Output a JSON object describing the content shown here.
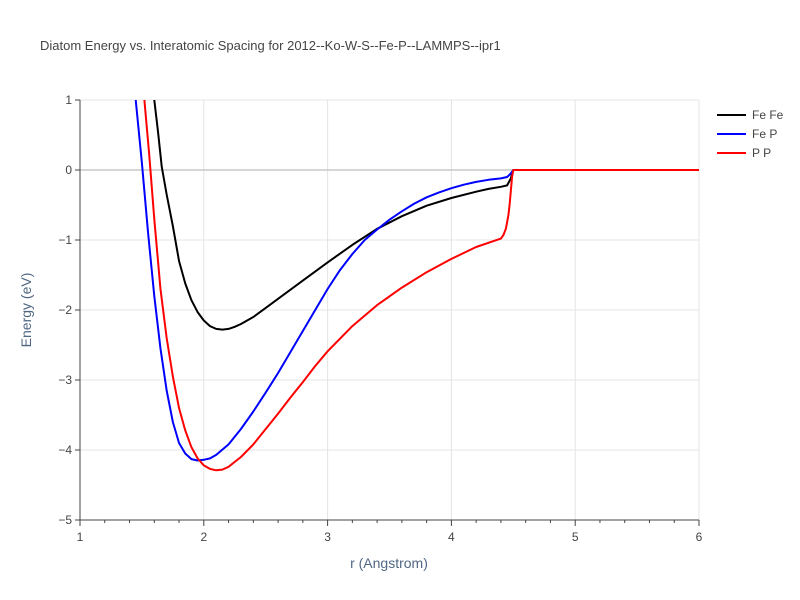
{
  "chart_data": {
    "type": "line",
    "title": "Diatom Energy vs. Interatomic Spacing for 2012--Ko-W-S--Fe-P--LAMMPS--ipr1",
    "xlabel": "r (Angstrom)",
    "ylabel": "Energy (eV)",
    "xlim": [
      1,
      6
    ],
    "ylim": [
      -5,
      1
    ],
    "xticks": [
      1,
      2,
      3,
      4,
      5,
      6
    ],
    "yticks": [
      -5,
      -4,
      -3,
      -2,
      -1,
      0,
      1
    ],
    "xtick_labels": [
      "1",
      "2",
      "3",
      "4",
      "5",
      "6"
    ],
    "ytick_labels": [
      "−5",
      "−4",
      "−3",
      "−2",
      "−1",
      "0",
      "1"
    ],
    "grid": true,
    "legend_position": "top-right",
    "series": [
      {
        "name": "Fe Fe",
        "color": "#000000",
        "x": [
          1.6,
          1.63,
          1.66,
          1.7,
          1.75,
          1.8,
          1.85,
          1.9,
          1.95,
          2.0,
          2.05,
          2.1,
          2.15,
          2.2,
          2.25,
          2.3,
          2.4,
          2.5,
          2.6,
          2.8,
          3.0,
          3.2,
          3.4,
          3.6,
          3.8,
          4.0,
          4.2,
          4.3,
          4.4,
          4.45,
          4.48,
          4.5,
          5.0,
          5.5,
          6.0
        ],
        "y": [
          1.0,
          0.55,
          0.05,
          -0.35,
          -0.8,
          -1.3,
          -1.62,
          -1.86,
          -2.03,
          -2.15,
          -2.23,
          -2.27,
          -2.28,
          -2.27,
          -2.24,
          -2.2,
          -2.1,
          -1.97,
          -1.84,
          -1.58,
          -1.32,
          -1.07,
          -0.84,
          -0.66,
          -0.51,
          -0.4,
          -0.31,
          -0.27,
          -0.24,
          -0.22,
          -0.12,
          0.0,
          0.0,
          0.0,
          0.0
        ]
      },
      {
        "name": "Fe P",
        "color": "#0000ff",
        "x": [
          1.45,
          1.5,
          1.55,
          1.6,
          1.65,
          1.7,
          1.75,
          1.8,
          1.85,
          1.9,
          1.95,
          2.0,
          2.05,
          2.1,
          2.2,
          2.3,
          2.4,
          2.5,
          2.6,
          2.7,
          2.8,
          2.9,
          3.0,
          3.1,
          3.2,
          3.3,
          3.4,
          3.5,
          3.6,
          3.7,
          3.8,
          3.9,
          4.0,
          4.1,
          4.2,
          4.3,
          4.4,
          4.45,
          4.48,
          4.5,
          5.0,
          5.5,
          6.0
        ],
        "y": [
          1.0,
          0.1,
          -0.9,
          -1.8,
          -2.55,
          -3.15,
          -3.6,
          -3.9,
          -4.05,
          -4.13,
          -4.15,
          -4.14,
          -4.12,
          -4.07,
          -3.92,
          -3.7,
          -3.45,
          -3.18,
          -2.9,
          -2.6,
          -2.3,
          -2.0,
          -1.7,
          -1.43,
          -1.2,
          -1.0,
          -0.85,
          -0.71,
          -0.59,
          -0.48,
          -0.39,
          -0.32,
          -0.26,
          -0.21,
          -0.17,
          -0.14,
          -0.12,
          -0.1,
          -0.05,
          0.0,
          0.0,
          0.0,
          0.0
        ]
      },
      {
        "name": "P P",
        "color": "#ff0000",
        "x": [
          1.52,
          1.56,
          1.6,
          1.65,
          1.7,
          1.75,
          1.8,
          1.85,
          1.9,
          1.95,
          2.0,
          2.05,
          2.1,
          2.15,
          2.2,
          2.25,
          2.3,
          2.4,
          2.5,
          2.6,
          2.7,
          2.8,
          2.9,
          3.0,
          3.2,
          3.4,
          3.6,
          3.8,
          4.0,
          4.2,
          4.4,
          4.42,
          4.44,
          4.46,
          4.47,
          4.48,
          4.49,
          4.5,
          5.0,
          5.5,
          6.0
        ],
        "y": [
          1.0,
          0.2,
          -0.7,
          -1.7,
          -2.4,
          -2.95,
          -3.4,
          -3.72,
          -3.96,
          -4.12,
          -4.22,
          -4.27,
          -4.29,
          -4.28,
          -4.24,
          -4.17,
          -4.1,
          -3.92,
          -3.7,
          -3.48,
          -3.25,
          -3.03,
          -2.8,
          -2.59,
          -2.23,
          -1.93,
          -1.68,
          -1.46,
          -1.27,
          -1.1,
          -0.98,
          -0.93,
          -0.84,
          -0.65,
          -0.5,
          -0.3,
          -0.1,
          0.0,
          0.0,
          0.0,
          0.0
        ]
      }
    ]
  }
}
